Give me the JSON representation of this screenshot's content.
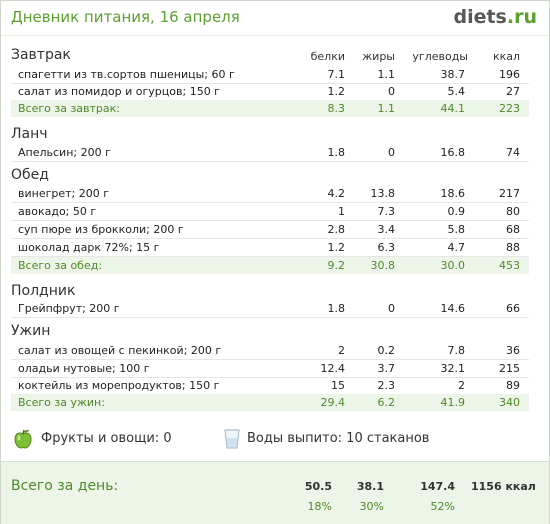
{
  "header": {
    "title": "Дневник питания, 16 апреля",
    "brand": "diets",
    "brand_tld": ".ru"
  },
  "columns": {
    "protein": "белки",
    "fat": "жиры",
    "carbs": "углеводы",
    "kcal": "ккал"
  },
  "meals": {
    "breakfast": {
      "name": "Завтрак",
      "items": [
        {
          "food": "спагетти из тв.сортов пшеницы; 60 г",
          "protein": "7.1",
          "fat": "1.1",
          "carbs": "38.7",
          "kcal": "196"
        },
        {
          "food": "салат из помидор и огурцов; 150 г",
          "protein": "1.2",
          "fat": "0",
          "carbs": "5.4",
          "kcal": "27"
        }
      ],
      "total": {
        "label": "Всего за завтрак:",
        "protein": "8.3",
        "fat": "1.1",
        "carbs": "44.1",
        "kcal": "223"
      }
    },
    "lunch": {
      "name": "Ланч",
      "items": [
        {
          "food": "Апельсин; 200 г",
          "protein": "1.8",
          "fat": "0",
          "carbs": "16.8",
          "kcal": "74"
        }
      ]
    },
    "dinner": {
      "name": "Обед",
      "items": [
        {
          "food": "винегрет; 200 г",
          "protein": "4.2",
          "fat": "13.8",
          "carbs": "18.6",
          "kcal": "217"
        },
        {
          "food": "авокадо; 50 г",
          "protein": "1",
          "fat": "7.3",
          "carbs": "0.9",
          "kcal": "80"
        },
        {
          "food": "суп пюре из брокколи; 200 г",
          "protein": "2.8",
          "fat": "3.4",
          "carbs": "5.8",
          "kcal": "68"
        },
        {
          "food": "шоколад дарк 72%; 15 г",
          "protein": "1.2",
          "fat": "6.3",
          "carbs": "4.7",
          "kcal": "88"
        }
      ],
      "total": {
        "label": "Всего за обед:",
        "protein": "9.2",
        "fat": "30.8",
        "carbs": "30.0",
        "kcal": "453"
      }
    },
    "snack": {
      "name": "Полдник",
      "items": [
        {
          "food": "Грейпфрут; 200 г",
          "protein": "1.8",
          "fat": "0",
          "carbs": "14.6",
          "kcal": "66"
        }
      ]
    },
    "supper": {
      "name": "Ужин",
      "items": [
        {
          "food": "салат из овощей с пекинкой; 200 г",
          "protein": "2",
          "fat": "0.2",
          "carbs": "7.8",
          "kcal": "36"
        },
        {
          "food": "оладьи нутовые; 100 г",
          "protein": "12.4",
          "fat": "3.7",
          "carbs": "32.1",
          "kcal": "215"
        },
        {
          "food": "коктейль из морепродуктов; 150 г",
          "protein": "15",
          "fat": "2.3",
          "carbs": "2",
          "kcal": "89"
        }
      ],
      "total": {
        "label": "Всего за ужин:",
        "protein": "29.4",
        "fat": "6.2",
        "carbs": "41.9",
        "kcal": "340"
      }
    }
  },
  "extras": {
    "fruits": "Фрукты и овощи: 0",
    "water": "Воды выпито: 10 стаканов",
    "fruit_icon": "green-apple",
    "water_icon": "water-glass"
  },
  "day_total": {
    "label": "Всего за день:",
    "protein": "50.5",
    "fat": "38.1",
    "carbs": "147.4",
    "kcal": "1156 ккал",
    "protein_pct": "18%",
    "fat_pct": "30%",
    "carbs_pct": "52%"
  },
  "colors": {
    "accent": "#5d9f30",
    "total_bg": "#edf4e8"
  }
}
